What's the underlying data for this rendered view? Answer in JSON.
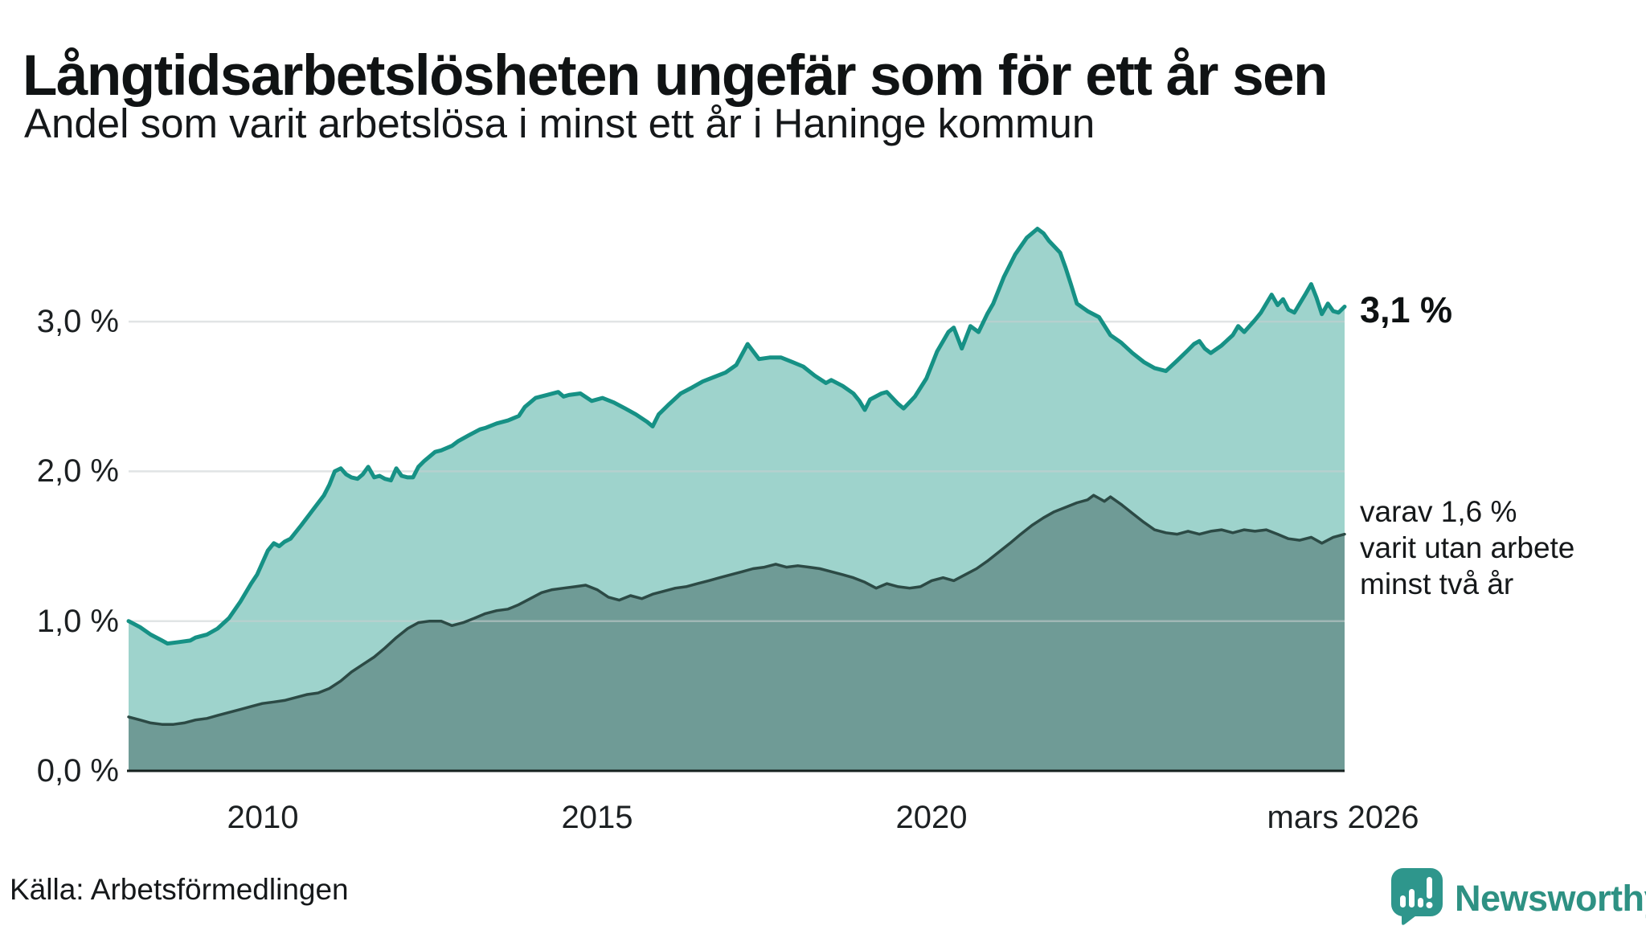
{
  "header": {
    "title": "Långtidsarbetslösheten ungefär som för ett år sen",
    "subtitle": "Andel som varit arbetslösa i minst ett år i Haninge kommun"
  },
  "footer": {
    "source": "Källa: Arbetsförmedlingen",
    "brand": "Newsworthy",
    "brand_color": "#2e9183",
    "logo_bubble_color": "#2e968c"
  },
  "annotations": {
    "total_end_label": "3,1 %",
    "secondary_line1": "varav 1,6 %",
    "secondary_line2": "varit utan arbete",
    "secondary_line3": "minst två år"
  },
  "chart_data": {
    "type": "area",
    "title": "Långtidsarbetslösheten ungefär som för ett år sen",
    "subtitle": "Andel som varit arbetslösa i minst ett år i Haninge kommun",
    "unit": "percent",
    "xlabel": "",
    "ylabel": "",
    "x_range": [
      2008.0,
      2026.17
    ],
    "ylim": [
      0,
      3.75
    ],
    "grid": "horizontal",
    "legend_position": "annotations-right",
    "colors": {
      "total_stroke": "#169185",
      "total_fill": "#9ed3cc",
      "two_year_stroke": "#2c4a45",
      "two_year_fill": "#6f9b96",
      "gridline": "#c9ced0",
      "baseline": "#17211f"
    },
    "y_ticks": [
      {
        "value": 3.0,
        "label": "3,0 %"
      },
      {
        "value": 2.0,
        "label": "2,0 %"
      },
      {
        "value": 1.0,
        "label": "1,0 %"
      },
      {
        "value": 0.0,
        "label": "0,0 %"
      }
    ],
    "x_ticks": [
      {
        "value": 2010,
        "label": "2010"
      },
      {
        "value": 2015,
        "label": "2015"
      },
      {
        "value": 2020,
        "label": "2020"
      },
      {
        "value": 2026.17,
        "label": "mars 2026"
      }
    ],
    "series": [
      {
        "name": "Arbetslösa minst ett år (andel)",
        "end_value_label": "3,1 %",
        "end_value": 3.1,
        "points": [
          [
            2008.0,
            1.0
          ],
          [
            2008.17,
            0.96
          ],
          [
            2008.33,
            0.91
          ],
          [
            2008.5,
            0.87
          ],
          [
            2008.58,
            0.85
          ],
          [
            2008.75,
            0.86
          ],
          [
            2008.92,
            0.87
          ],
          [
            2009.0,
            0.89
          ],
          [
            2009.17,
            0.91
          ],
          [
            2009.33,
            0.95
          ],
          [
            2009.5,
            1.02
          ],
          [
            2009.67,
            1.13
          ],
          [
            2009.83,
            1.25
          ],
          [
            2009.92,
            1.31
          ],
          [
            2010.08,
            1.47
          ],
          [
            2010.17,
            1.52
          ],
          [
            2010.25,
            1.5
          ],
          [
            2010.33,
            1.53
          ],
          [
            2010.42,
            1.55
          ],
          [
            2010.58,
            1.64
          ],
          [
            2010.75,
            1.74
          ],
          [
            2010.92,
            1.84
          ],
          [
            2011.0,
            1.91
          ],
          [
            2011.08,
            2.0
          ],
          [
            2011.17,
            2.02
          ],
          [
            2011.25,
            1.98
          ],
          [
            2011.33,
            1.96
          ],
          [
            2011.42,
            1.95
          ],
          [
            2011.5,
            1.98
          ],
          [
            2011.58,
            2.03
          ],
          [
            2011.67,
            1.96
          ],
          [
            2011.75,
            1.97
          ],
          [
            2011.83,
            1.95
          ],
          [
            2011.92,
            1.94
          ],
          [
            2012.0,
            2.02
          ],
          [
            2012.08,
            1.97
          ],
          [
            2012.17,
            1.96
          ],
          [
            2012.25,
            1.96
          ],
          [
            2012.33,
            2.03
          ],
          [
            2012.42,
            2.07
          ],
          [
            2012.5,
            2.1
          ],
          [
            2012.58,
            2.13
          ],
          [
            2012.67,
            2.14
          ],
          [
            2012.83,
            2.17
          ],
          [
            2012.92,
            2.2
          ],
          [
            2013.08,
            2.24
          ],
          [
            2013.25,
            2.28
          ],
          [
            2013.33,
            2.29
          ],
          [
            2013.5,
            2.32
          ],
          [
            2013.67,
            2.34
          ],
          [
            2013.83,
            2.37
          ],
          [
            2013.92,
            2.43
          ],
          [
            2014.08,
            2.49
          ],
          [
            2014.25,
            2.51
          ],
          [
            2014.42,
            2.53
          ],
          [
            2014.5,
            2.5
          ],
          [
            2014.58,
            2.51
          ],
          [
            2014.75,
            2.52
          ],
          [
            2014.92,
            2.47
          ],
          [
            2015.08,
            2.49
          ],
          [
            2015.25,
            2.46
          ],
          [
            2015.42,
            2.42
          ],
          [
            2015.58,
            2.38
          ],
          [
            2015.75,
            2.33
          ],
          [
            2015.83,
            2.3
          ],
          [
            2015.92,
            2.38
          ],
          [
            2016.08,
            2.45
          ],
          [
            2016.25,
            2.52
          ],
          [
            2016.42,
            2.56
          ],
          [
            2016.58,
            2.6
          ],
          [
            2016.75,
            2.63
          ],
          [
            2016.92,
            2.66
          ],
          [
            2017.08,
            2.71
          ],
          [
            2017.25,
            2.85
          ],
          [
            2017.42,
            2.75
          ],
          [
            2017.58,
            2.76
          ],
          [
            2017.75,
            2.76
          ],
          [
            2017.92,
            2.73
          ],
          [
            2018.08,
            2.7
          ],
          [
            2018.25,
            2.64
          ],
          [
            2018.42,
            2.59
          ],
          [
            2018.5,
            2.61
          ],
          [
            2018.67,
            2.57
          ],
          [
            2018.83,
            2.52
          ],
          [
            2018.92,
            2.47
          ],
          [
            2019.0,
            2.41
          ],
          [
            2019.08,
            2.48
          ],
          [
            2019.25,
            2.52
          ],
          [
            2019.33,
            2.53
          ],
          [
            2019.5,
            2.45
          ],
          [
            2019.58,
            2.42
          ],
          [
            2019.75,
            2.5
          ],
          [
            2019.92,
            2.62
          ],
          [
            2020.08,
            2.8
          ],
          [
            2020.25,
            2.93
          ],
          [
            2020.33,
            2.96
          ],
          [
            2020.45,
            2.82
          ],
          [
            2020.58,
            2.97
          ],
          [
            2020.7,
            2.93
          ],
          [
            2020.83,
            3.05
          ],
          [
            2020.92,
            3.12
          ],
          [
            2021.08,
            3.3
          ],
          [
            2021.25,
            3.45
          ],
          [
            2021.42,
            3.56
          ],
          [
            2021.58,
            3.62
          ],
          [
            2021.67,
            3.59
          ],
          [
            2021.75,
            3.54
          ],
          [
            2021.92,
            3.46
          ],
          [
            2022.0,
            3.36
          ],
          [
            2022.08,
            3.25
          ],
          [
            2022.17,
            3.12
          ],
          [
            2022.33,
            3.07
          ],
          [
            2022.5,
            3.03
          ],
          [
            2022.67,
            2.91
          ],
          [
            2022.83,
            2.86
          ],
          [
            2023.0,
            2.79
          ],
          [
            2023.17,
            2.73
          ],
          [
            2023.33,
            2.69
          ],
          [
            2023.5,
            2.67
          ],
          [
            2023.67,
            2.74
          ],
          [
            2023.83,
            2.81
          ],
          [
            2023.92,
            2.85
          ],
          [
            2024.0,
            2.87
          ],
          [
            2024.08,
            2.82
          ],
          [
            2024.17,
            2.79
          ],
          [
            2024.33,
            2.84
          ],
          [
            2024.5,
            2.91
          ],
          [
            2024.58,
            2.97
          ],
          [
            2024.67,
            2.93
          ],
          [
            2024.83,
            3.01
          ],
          [
            2024.92,
            3.06
          ],
          [
            2025.08,
            3.18
          ],
          [
            2025.17,
            3.11
          ],
          [
            2025.25,
            3.15
          ],
          [
            2025.33,
            3.08
          ],
          [
            2025.42,
            3.06
          ],
          [
            2025.5,
            3.12
          ],
          [
            2025.58,
            3.18
          ],
          [
            2025.67,
            3.25
          ],
          [
            2025.75,
            3.16
          ],
          [
            2025.83,
            3.05
          ],
          [
            2025.92,
            3.12
          ],
          [
            2026.0,
            3.07
          ],
          [
            2026.08,
            3.06
          ],
          [
            2026.17,
            3.1
          ]
        ]
      },
      {
        "name": "varav arbetslösa minst två år (andel)",
        "end_value_label": "varav 1,6 % varit utan arbete minst två år",
        "end_value": 1.6,
        "points": [
          [
            2008.0,
            0.36
          ],
          [
            2008.17,
            0.34
          ],
          [
            2008.33,
            0.32
          ],
          [
            2008.5,
            0.31
          ],
          [
            2008.67,
            0.31
          ],
          [
            2008.83,
            0.32
          ],
          [
            2009.0,
            0.34
          ],
          [
            2009.17,
            0.35
          ],
          [
            2009.33,
            0.37
          ],
          [
            2009.5,
            0.39
          ],
          [
            2009.67,
            0.41
          ],
          [
            2009.83,
            0.43
          ],
          [
            2010.0,
            0.45
          ],
          [
            2010.17,
            0.46
          ],
          [
            2010.33,
            0.47
          ],
          [
            2010.5,
            0.49
          ],
          [
            2010.67,
            0.51
          ],
          [
            2010.83,
            0.52
          ],
          [
            2011.0,
            0.55
          ],
          [
            2011.17,
            0.6
          ],
          [
            2011.33,
            0.66
          ],
          [
            2011.5,
            0.71
          ],
          [
            2011.67,
            0.76
          ],
          [
            2011.83,
            0.82
          ],
          [
            2012.0,
            0.89
          ],
          [
            2012.17,
            0.95
          ],
          [
            2012.33,
            0.99
          ],
          [
            2012.5,
            1.0
          ],
          [
            2012.67,
            1.0
          ],
          [
            2012.83,
            0.97
          ],
          [
            2013.0,
            0.99
          ],
          [
            2013.17,
            1.02
          ],
          [
            2013.33,
            1.05
          ],
          [
            2013.5,
            1.07
          ],
          [
            2013.67,
            1.08
          ],
          [
            2013.83,
            1.11
          ],
          [
            2014.0,
            1.15
          ],
          [
            2014.17,
            1.19
          ],
          [
            2014.33,
            1.21
          ],
          [
            2014.5,
            1.22
          ],
          [
            2014.67,
            1.23
          ],
          [
            2014.83,
            1.24
          ],
          [
            2015.0,
            1.21
          ],
          [
            2015.17,
            1.16
          ],
          [
            2015.33,
            1.14
          ],
          [
            2015.5,
            1.17
          ],
          [
            2015.67,
            1.15
          ],
          [
            2015.83,
            1.18
          ],
          [
            2016.0,
            1.2
          ],
          [
            2016.17,
            1.22
          ],
          [
            2016.33,
            1.23
          ],
          [
            2016.5,
            1.25
          ],
          [
            2016.67,
            1.27
          ],
          [
            2016.83,
            1.29
          ],
          [
            2017.0,
            1.31
          ],
          [
            2017.17,
            1.33
          ],
          [
            2017.33,
            1.35
          ],
          [
            2017.5,
            1.36
          ],
          [
            2017.67,
            1.38
          ],
          [
            2017.83,
            1.36
          ],
          [
            2018.0,
            1.37
          ],
          [
            2018.17,
            1.36
          ],
          [
            2018.33,
            1.35
          ],
          [
            2018.5,
            1.33
          ],
          [
            2018.67,
            1.31
          ],
          [
            2018.83,
            1.29
          ],
          [
            2019.0,
            1.26
          ],
          [
            2019.17,
            1.22
          ],
          [
            2019.33,
            1.25
          ],
          [
            2019.5,
            1.23
          ],
          [
            2019.67,
            1.22
          ],
          [
            2019.83,
            1.23
          ],
          [
            2020.0,
            1.27
          ],
          [
            2020.17,
            1.29
          ],
          [
            2020.33,
            1.27
          ],
          [
            2020.5,
            1.31
          ],
          [
            2020.67,
            1.35
          ],
          [
            2020.83,
            1.4
          ],
          [
            2021.0,
            1.46
          ],
          [
            2021.17,
            1.52
          ],
          [
            2021.33,
            1.58
          ],
          [
            2021.5,
            1.64
          ],
          [
            2021.67,
            1.69
          ],
          [
            2021.83,
            1.73
          ],
          [
            2022.0,
            1.76
          ],
          [
            2022.17,
            1.79
          ],
          [
            2022.33,
            1.81
          ],
          [
            2022.42,
            1.84
          ],
          [
            2022.5,
            1.82
          ],
          [
            2022.58,
            1.8
          ],
          [
            2022.67,
            1.83
          ],
          [
            2022.83,
            1.78
          ],
          [
            2023.0,
            1.72
          ],
          [
            2023.17,
            1.66
          ],
          [
            2023.33,
            1.61
          ],
          [
            2023.5,
            1.59
          ],
          [
            2023.67,
            1.58
          ],
          [
            2023.83,
            1.6
          ],
          [
            2024.0,
            1.58
          ],
          [
            2024.17,
            1.6
          ],
          [
            2024.33,
            1.61
          ],
          [
            2024.5,
            1.59
          ],
          [
            2024.67,
            1.61
          ],
          [
            2024.83,
            1.6
          ],
          [
            2025.0,
            1.61
          ],
          [
            2025.17,
            1.58
          ],
          [
            2025.33,
            1.55
          ],
          [
            2025.5,
            1.54
          ],
          [
            2025.67,
            1.56
          ],
          [
            2025.83,
            1.52
          ],
          [
            2026.0,
            1.56
          ],
          [
            2026.17,
            1.58
          ]
        ]
      }
    ]
  }
}
